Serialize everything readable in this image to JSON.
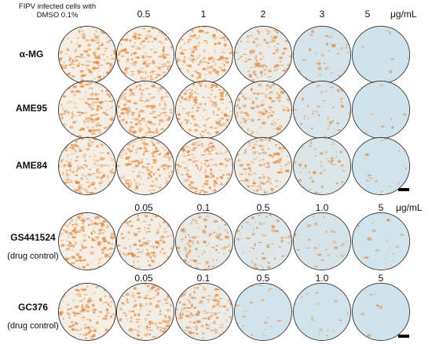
{
  "control_header": "FIPV infected cells with DMSO 0.1%",
  "block1": {
    "concentrations": [
      "0.5",
      "1",
      "2",
      "3",
      "5"
    ],
    "unit": "μg/mL",
    "rows": [
      {
        "label": "α-MG"
      },
      {
        "label": "AME95"
      },
      {
        "label": "AME84"
      }
    ]
  },
  "block2": {
    "concentrations": [
      "0.05",
      "0.1",
      "0.5",
      "1.0",
      "5"
    ],
    "unit": "μg/mL",
    "row": {
      "label": "GS441524",
      "sublabel": "(drug control)"
    }
  },
  "block3": {
    "concentrations": [
      "0.05",
      "0.1",
      "0.5",
      "1.0",
      "5"
    ],
    "row": {
      "label": "GC376",
      "sublabel": "(drug control)"
    }
  },
  "stain_intensity": [
    [
      0.85,
      0.8,
      0.75,
      0.55,
      0.12,
      0.02
    ],
    [
      0.85,
      0.8,
      0.75,
      0.6,
      0.2,
      0.02
    ],
    [
      0.85,
      0.8,
      0.72,
      0.62,
      0.25,
      0.05
    ],
    [
      0.9,
      0.7,
      0.5,
      0.3,
      0.15,
      0.05
    ],
    [
      0.75,
      0.7,
      0.6,
      0.08,
      0.05,
      0.02
    ]
  ],
  "colors": {
    "stain": "#e0883e",
    "background_blue": "#cfe2ec",
    "cream": "#f5eee4"
  }
}
